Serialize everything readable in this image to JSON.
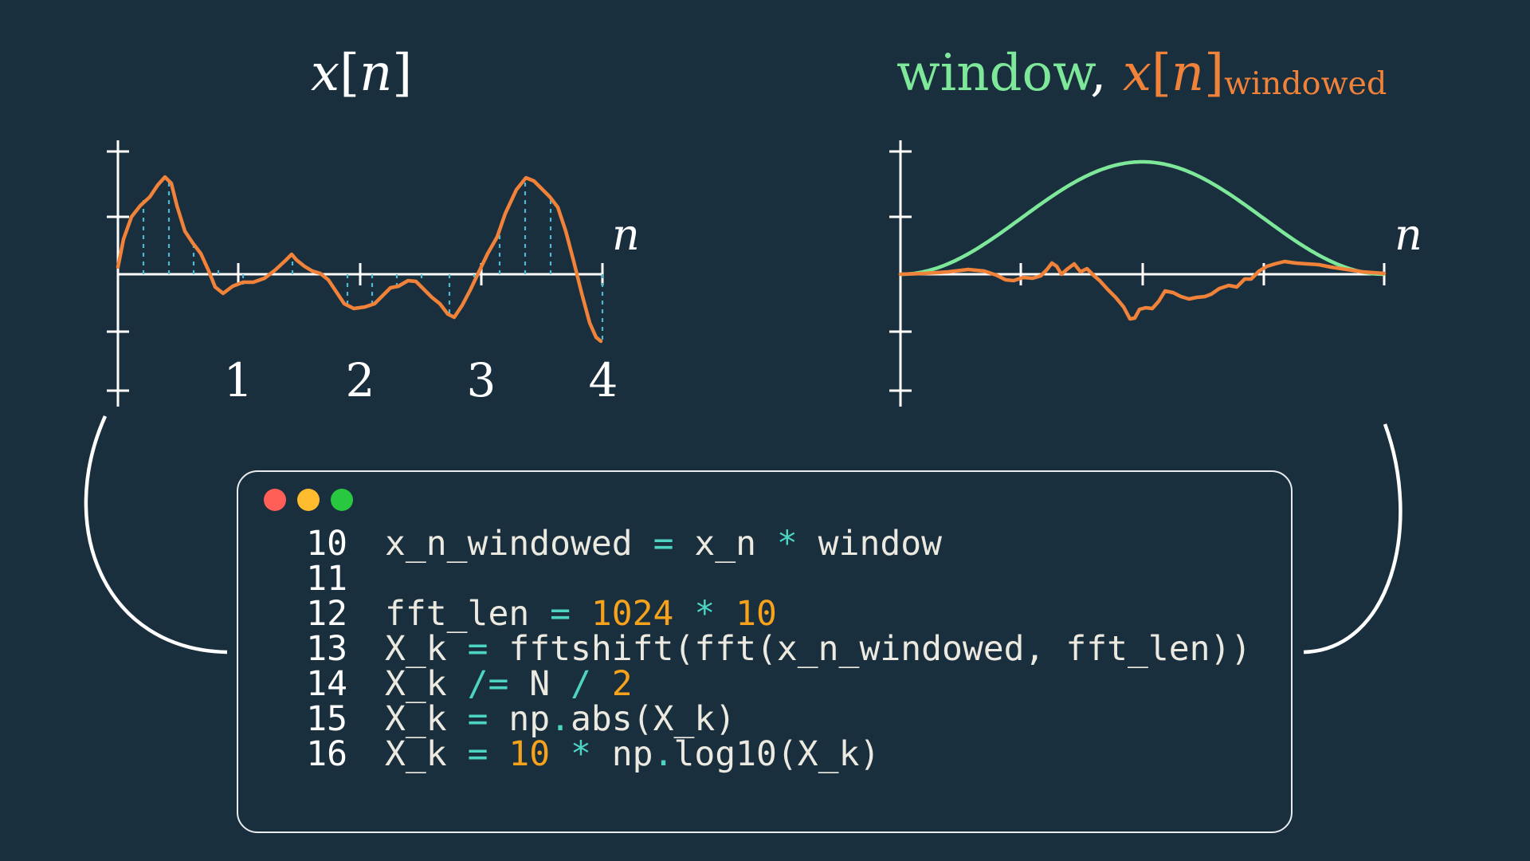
{
  "titles": {
    "left": {
      "var": "x",
      "bracket_open": "[",
      "index": "n",
      "bracket_close": "]"
    },
    "right": {
      "window_word": "window",
      "sep": ", ",
      "var": "x",
      "bracket_open": "[",
      "index": "n",
      "bracket_close": "]",
      "subscript": "windowed"
    }
  },
  "axes": {
    "left_x_label": "n",
    "right_x_label": "n",
    "left_ticks": [
      "1",
      "2",
      "3",
      "4"
    ]
  },
  "colors": {
    "background": "#1a2f3d",
    "signal": "#f0823a",
    "window": "#7ee89a",
    "stems": "#4fb7cf",
    "axes": "#ffffff",
    "code_operator": "#4dd4c2",
    "code_number": "#f7a21b",
    "code_text": "#eceae0"
  },
  "window_controls": [
    "close",
    "minimize",
    "maximize"
  ],
  "code": {
    "lines": [
      {
        "num": "10",
        "tokens": [
          {
            "t": "x_n_windowed",
            "k": "id"
          },
          {
            "t": " ",
            "k": "id"
          },
          {
            "t": "=",
            "k": "op"
          },
          {
            "t": " x_n ",
            "k": "id"
          },
          {
            "t": "*",
            "k": "op"
          },
          {
            "t": " window",
            "k": "id"
          }
        ]
      },
      {
        "num": "11",
        "tokens": []
      },
      {
        "num": "12",
        "tokens": [
          {
            "t": "fft_len ",
            "k": "id"
          },
          {
            "t": "=",
            "k": "op"
          },
          {
            "t": " ",
            "k": "id"
          },
          {
            "t": "1024",
            "k": "num"
          },
          {
            "t": " ",
            "k": "id"
          },
          {
            "t": "*",
            "k": "op"
          },
          {
            "t": " ",
            "k": "id"
          },
          {
            "t": "10",
            "k": "num"
          }
        ]
      },
      {
        "num": "13",
        "tokens": [
          {
            "t": "X_k ",
            "k": "id"
          },
          {
            "t": "=",
            "k": "op"
          },
          {
            "t": " fftshift(fft(x_n_windowed, fft_len))",
            "k": "id"
          }
        ]
      },
      {
        "num": "14",
        "tokens": [
          {
            "t": "X_k ",
            "k": "id"
          },
          {
            "t": "/=",
            "k": "op"
          },
          {
            "t": " N ",
            "k": "id"
          },
          {
            "t": "/",
            "k": "op"
          },
          {
            "t": " ",
            "k": "id"
          },
          {
            "t": "2",
            "k": "num"
          }
        ]
      },
      {
        "num": "15",
        "tokens": [
          {
            "t": "X_k ",
            "k": "id"
          },
          {
            "t": "=",
            "k": "op"
          },
          {
            "t": " np",
            "k": "id"
          },
          {
            "t": ".",
            "k": "op"
          },
          {
            "t": "abs(X_k)",
            "k": "id"
          }
        ]
      },
      {
        "num": "16",
        "tokens": [
          {
            "t": "X_k ",
            "k": "id"
          },
          {
            "t": "=",
            "k": "op"
          },
          {
            "t": " ",
            "k": "id"
          },
          {
            "t": "10",
            "k": "num"
          },
          {
            "t": " ",
            "k": "id"
          },
          {
            "t": "*",
            "k": "op"
          },
          {
            "t": " np",
            "k": "id"
          },
          {
            "t": ".",
            "k": "op"
          },
          {
            "t": "log10(X_k)",
            "k": "id"
          }
        ]
      }
    ]
  }
}
